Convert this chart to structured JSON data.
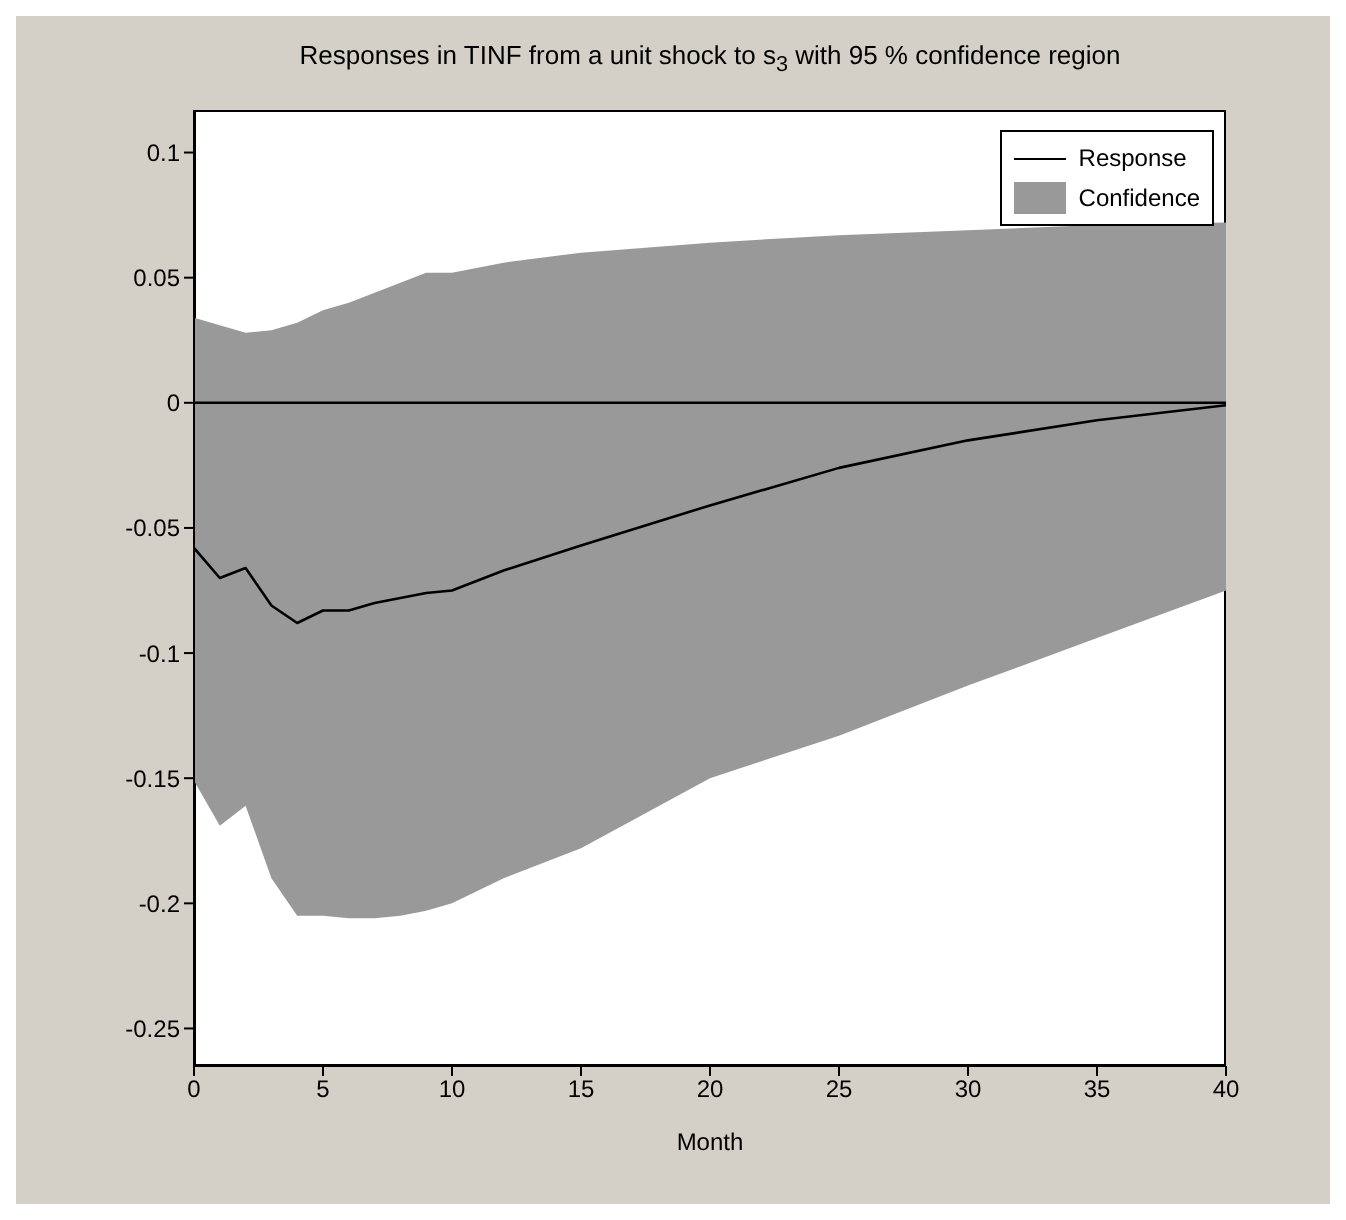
{
  "chart_data": {
    "type": "line",
    "title": "Responses in TINF from a unit shock to s$_{3}$ with 95 % confidence region",
    "xlabel": "Month",
    "x": [
      0,
      1,
      2,
      3,
      4,
      5,
      6,
      7,
      8,
      9,
      10,
      12,
      15,
      20,
      25,
      30,
      35,
      40
    ],
    "series": [
      {
        "name": "Response",
        "color": "#000000",
        "values": [
          -0.058,
          -0.07,
          -0.066,
          -0.081,
          -0.088,
          -0.083,
          -0.083,
          -0.08,
          -0.078,
          -0.076,
          -0.075,
          -0.067,
          -0.057,
          -0.041,
          -0.026,
          -0.015,
          -0.007,
          -0.001
        ],
        "lower": [
          -0.151,
          -0.169,
          -0.161,
          -0.19,
          -0.205,
          -0.205,
          -0.206,
          -0.206,
          -0.205,
          -0.203,
          -0.2,
          -0.19,
          -0.178,
          -0.15,
          -0.133,
          -0.113,
          -0.094,
          -0.075
        ],
        "upper": [
          0.034,
          0.031,
          0.028,
          0.029,
          0.032,
          0.037,
          0.04,
          0.044,
          0.048,
          0.052,
          0.052,
          0.056,
          0.06,
          0.064,
          0.067,
          0.069,
          0.071,
          0.072
        ]
      }
    ],
    "annotations": [
      "Confidence"
    ],
    "xlim": [
      0,
      40
    ],
    "xticks": [
      0,
      5,
      10,
      15,
      20,
      25,
      30,
      35,
      40
    ],
    "ylim": [
      -0.265,
      0.117
    ],
    "yticks": [
      -0.25,
      -0.2,
      -0.15,
      -0.1,
      -0.05,
      0,
      0.05,
      0.1
    ],
    "ref_lines": [
      {
        "axis": "y",
        "value": 0,
        "color": "#000000"
      }
    ],
    "legend": "top right",
    "grid": false,
    "marker": "none",
    "line_style": "solid"
  }
}
